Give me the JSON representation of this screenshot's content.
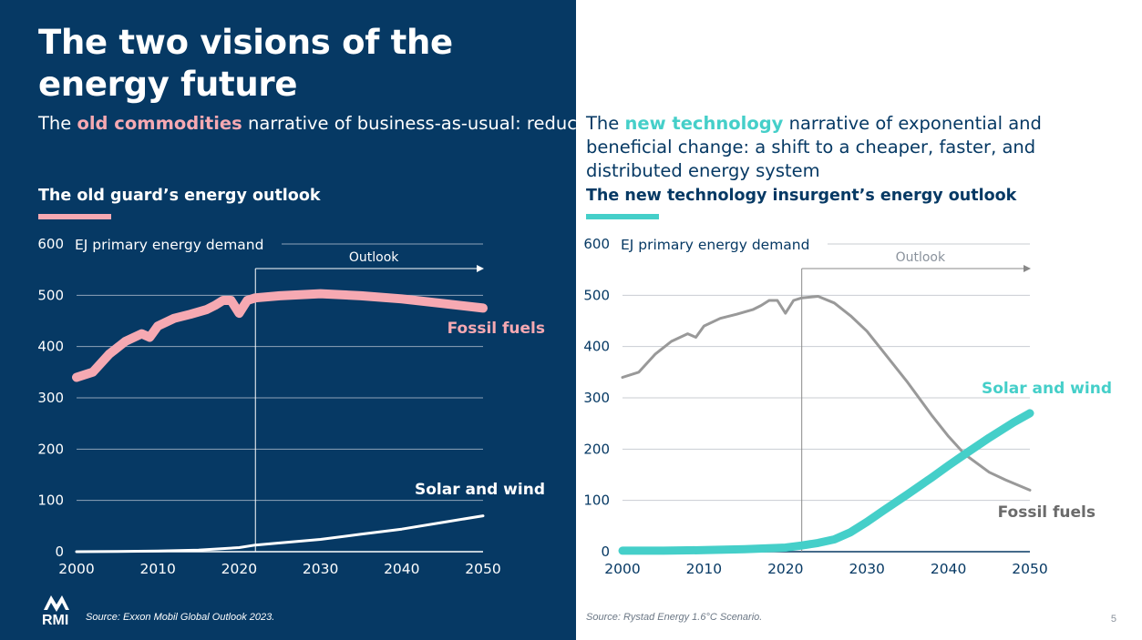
{
  "title": "The two visions of the energy future",
  "left": {
    "narrative_prefix": "The ",
    "narrative_highlight": "old commodities",
    "narrative_suffix": " narrative of business-as-usual: reducing fossil fuel demand will be slow, expensive, and painful",
    "chart_title": "The old guard’s energy outlook",
    "accent_color": "#f6a9b2",
    "source": "Source: Exxon Mobil Global Outlook 2023."
  },
  "right": {
    "narrative_prefix": "The ",
    "narrative_highlight": "new technology",
    "narrative_suffix": " narrative of exponential and beneficial change: a shift to a cheaper, faster, and distributed energy system",
    "chart_title": "The new technology insurgent’s energy outlook",
    "accent_color": "#45cfc9",
    "source": "Source: Rystad Energy 1.6°C Scenario."
  },
  "logo_text": "RMI",
  "page_number": "5",
  "colors": {
    "navy": "#063964",
    "pink": "#f6a9b2",
    "teal": "#45cfc9",
    "gray_line": "#999999"
  },
  "chart_data": [
    {
      "type": "line",
      "title": "The old guard’s energy outlook",
      "ylabel": "EJ primary energy demand",
      "xlim": [
        2000,
        2050
      ],
      "ylim": [
        0,
        600
      ],
      "xticks": [
        2000,
        2010,
        2020,
        2030,
        2040,
        2050
      ],
      "yticks": [
        0,
        100,
        200,
        300,
        400,
        500,
        600
      ],
      "grid": true,
      "annotation": {
        "text": "Outlook",
        "from_x": 2022,
        "to_x": 2050
      },
      "series": [
        {
          "name": "Fossil fuels",
          "color": "#f6a9b2",
          "x": [
            2000,
            2002,
            2004,
            2006,
            2008,
            2009,
            2010,
            2012,
            2014,
            2016,
            2017,
            2018,
            2019,
            2020,
            2021,
            2022,
            2025,
            2030,
            2035,
            2040,
            2045,
            2050
          ],
          "values": [
            340,
            350,
            385,
            410,
            425,
            418,
            440,
            455,
            463,
            472,
            480,
            490,
            490,
            465,
            490,
            495,
            499,
            503,
            499,
            493,
            484,
            475
          ]
        },
        {
          "name": "Solar and wind",
          "color": "#ffffff",
          "x": [
            2000,
            2005,
            2010,
            2015,
            2020,
            2022,
            2025,
            2030,
            2035,
            2040,
            2045,
            2050
          ],
          "values": [
            0,
            0.5,
            1.5,
            3,
            8,
            13,
            17,
            24,
            34,
            44,
            57,
            70
          ]
        }
      ]
    },
    {
      "type": "line",
      "title": "The new technology insurgent’s energy outlook",
      "ylabel": "EJ primary energy demand",
      "xlim": [
        2000,
        2050
      ],
      "ylim": [
        0,
        600
      ],
      "xticks": [
        2000,
        2010,
        2020,
        2030,
        2040,
        2050
      ],
      "yticks": [
        0,
        100,
        200,
        300,
        400,
        500,
        600
      ],
      "grid": true,
      "annotation": {
        "text": "Outlook",
        "from_x": 2022,
        "to_x": 2050
      },
      "series": [
        {
          "name": "Fossil fuels",
          "color": "#999999",
          "x": [
            2000,
            2002,
            2004,
            2006,
            2008,
            2009,
            2010,
            2012,
            2014,
            2016,
            2017,
            2018,
            2019,
            2020,
            2021,
            2022,
            2024,
            2026,
            2028,
            2030,
            2032,
            2035,
            2038,
            2040,
            2042,
            2045,
            2047,
            2050
          ],
          "values": [
            340,
            350,
            385,
            410,
            425,
            418,
            440,
            455,
            463,
            472,
            480,
            490,
            490,
            465,
            490,
            495,
            498,
            485,
            460,
            430,
            390,
            330,
            265,
            225,
            190,
            155,
            140,
            120
          ]
        },
        {
          "name": "Solar and wind",
          "color": "#45cfc9",
          "x": [
            2000,
            2005,
            2010,
            2015,
            2020,
            2022,
            2024,
            2026,
            2028,
            2030,
            2032,
            2035,
            2038,
            2040,
            2042,
            2045,
            2048,
            2050
          ],
          "values": [
            2,
            2,
            3,
            5,
            8,
            12,
            17,
            24,
            38,
            58,
            80,
            112,
            145,
            168,
            190,
            222,
            252,
            270
          ]
        }
      ]
    }
  ]
}
